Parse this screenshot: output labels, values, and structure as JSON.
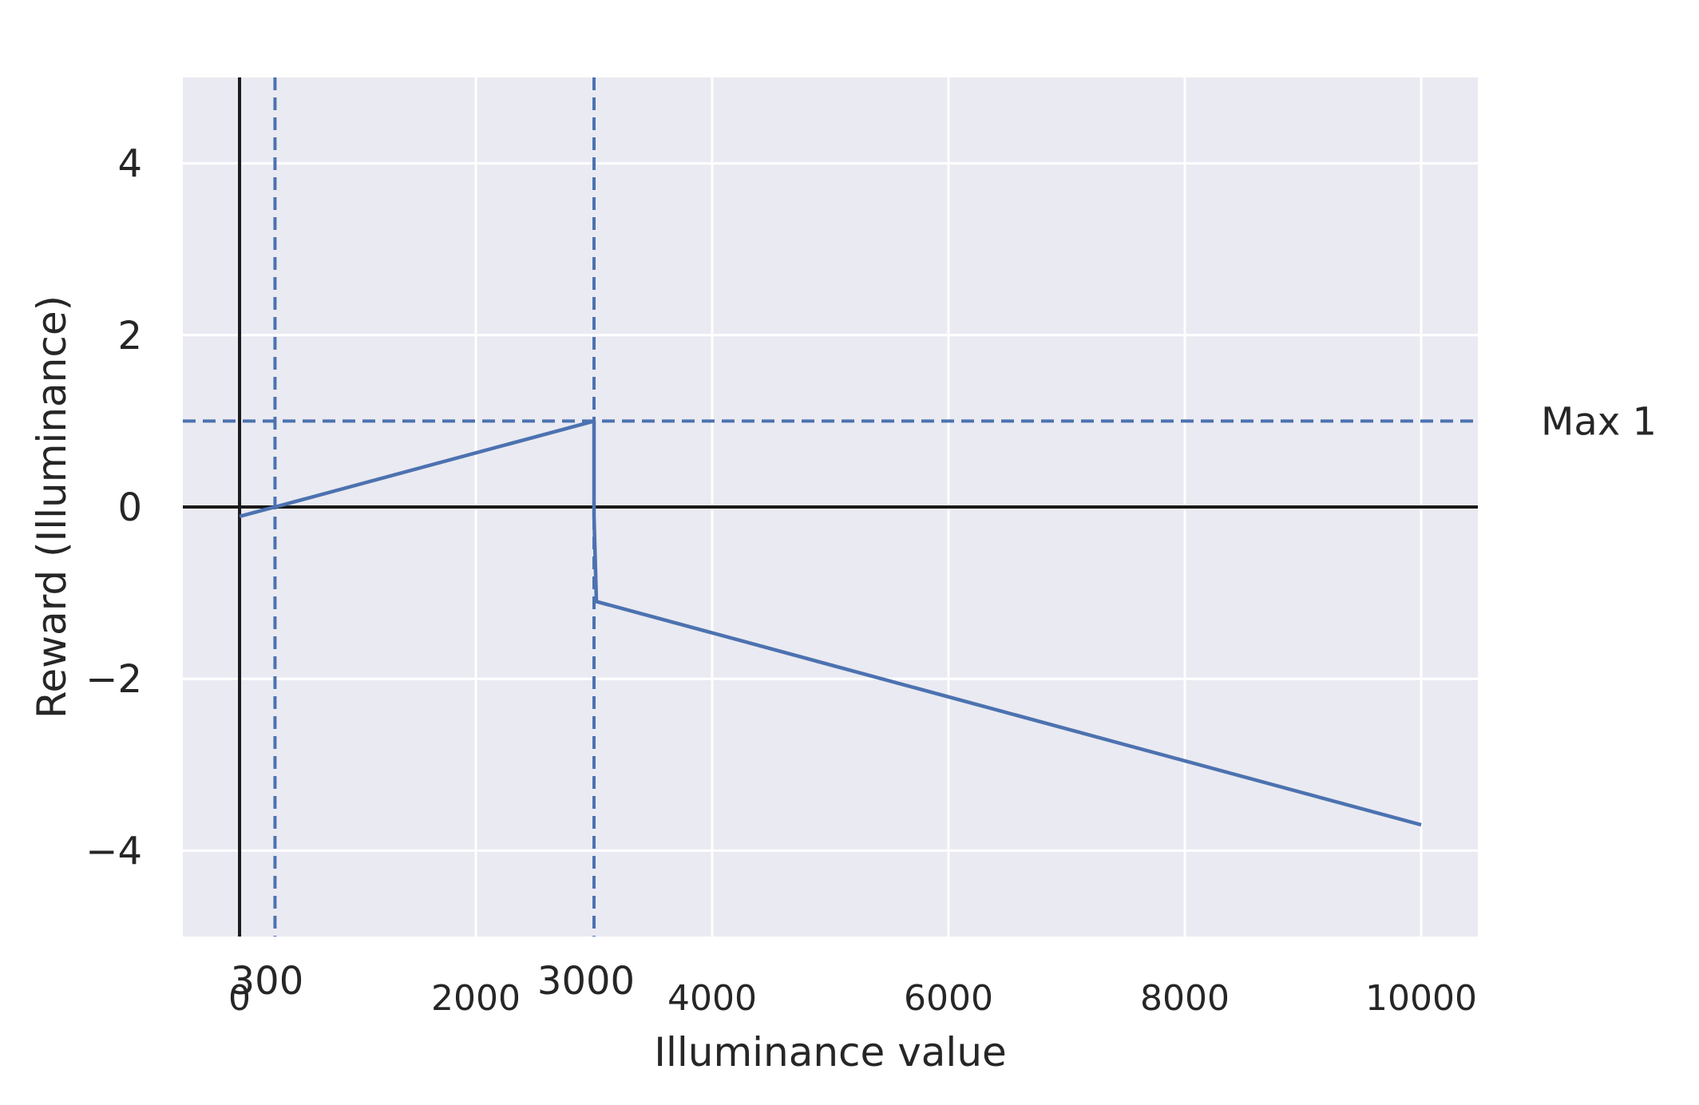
{
  "chart_data": {
    "type": "line",
    "title": "",
    "xlabel": "Illuminance value",
    "ylabel": "Reward (Illuminance)",
    "xlim": [
      -480,
      10480
    ],
    "ylim": [
      -5,
      5
    ],
    "xticks": [
      0,
      2000,
      4000,
      6000,
      8000,
      10000
    ],
    "yticks": [
      -4,
      -2,
      0,
      2,
      4
    ],
    "ytick_labels": [
      "−4",
      "−2",
      "0",
      "2",
      "4"
    ],
    "grid": true,
    "background_color": "#eaeaf2",
    "series": [
      {
        "color": "#4c72b0",
        "points": [
          [
            0,
            -0.11
          ],
          [
            300,
            0.0
          ],
          [
            3000,
            1.0
          ],
          [
            3000,
            -0.1
          ],
          [
            3020,
            -1.1
          ],
          [
            10000,
            -3.7
          ]
        ]
      }
    ],
    "reference_lines": [
      {
        "orientation": "vertical",
        "x": 0,
        "style": "solid",
        "color": "#1a1a1a"
      },
      {
        "orientation": "horizontal",
        "y": 0,
        "style": "solid",
        "color": "#1a1a1a"
      },
      {
        "orientation": "vertical",
        "x": 300,
        "style": "dashed",
        "color": "#4c72b0"
      },
      {
        "orientation": "vertical",
        "x": 3000,
        "style": "dashed",
        "color": "#4c72b0"
      },
      {
        "orientation": "horizontal",
        "y": 1,
        "style": "dashed",
        "color": "#4c72b0"
      }
    ],
    "annotations": [
      {
        "text": "300",
        "x": 300
      },
      {
        "text": "3000",
        "x": 3000
      },
      {
        "text": "Max 1",
        "y": 1
      }
    ]
  }
}
